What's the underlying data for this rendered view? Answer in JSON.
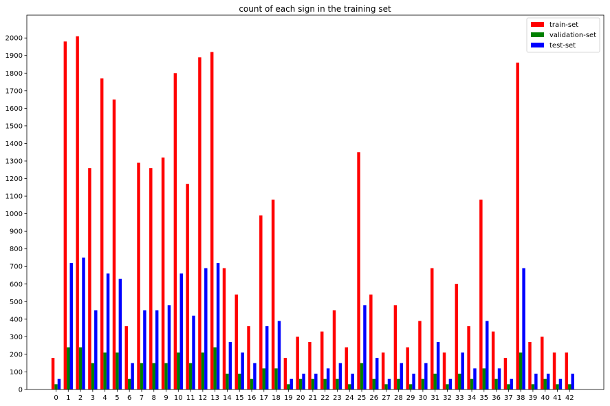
{
  "chart_data": {
    "type": "bar",
    "title": "count of each sign in the training set",
    "xlabel": "",
    "ylabel": "",
    "ylim": [
      0,
      2130
    ],
    "yticks": [
      0,
      100,
      200,
      300,
      400,
      500,
      600,
      700,
      800,
      900,
      1000,
      1100,
      1200,
      1300,
      1400,
      1500,
      1600,
      1700,
      1800,
      1900,
      2000
    ],
    "grid": false,
    "legend_position": "top-right",
    "categories": [
      "0",
      "1",
      "2",
      "3",
      "4",
      "5",
      "6",
      "7",
      "8",
      "9",
      "10",
      "11",
      "12",
      "13",
      "14",
      "15",
      "16",
      "17",
      "18",
      "19",
      "20",
      "21",
      "22",
      "23",
      "24",
      "25",
      "26",
      "27",
      "28",
      "29",
      "30",
      "31",
      "32",
      "33",
      "34",
      "35",
      "36",
      "37",
      "38",
      "39",
      "40",
      "41",
      "42"
    ],
    "series": [
      {
        "name": "train-set",
        "color": "#ff0000",
        "values": [
          180,
          1980,
          2010,
          1260,
          1770,
          1650,
          360,
          1290,
          1260,
          1320,
          1800,
          1170,
          1890,
          1920,
          690,
          540,
          360,
          990,
          1080,
          180,
          300,
          270,
          330,
          450,
          240,
          1350,
          540,
          210,
          480,
          240,
          390,
          690,
          210,
          600,
          360,
          1080,
          330,
          180,
          1860,
          270,
          300,
          210,
          210
        ]
      },
      {
        "name": "validation-set",
        "color": "#008000",
        "values": [
          30,
          240,
          240,
          150,
          210,
          210,
          60,
          150,
          150,
          150,
          210,
          150,
          210,
          240,
          90,
          90,
          60,
          120,
          120,
          30,
          60,
          60,
          60,
          60,
          30,
          150,
          60,
          30,
          60,
          30,
          60,
          90,
          30,
          90,
          60,
          120,
          60,
          30,
          210,
          30,
          60,
          30,
          30
        ]
      },
      {
        "name": "test-set",
        "color": "#0000ff",
        "values": [
          60,
          720,
          750,
          450,
          660,
          630,
          150,
          450,
          450,
          480,
          660,
          420,
          690,
          720,
          270,
          210,
          150,
          360,
          390,
          60,
          90,
          90,
          120,
          150,
          90,
          480,
          180,
          60,
          150,
          90,
          150,
          270,
          60,
          210,
          120,
          390,
          120,
          60,
          690,
          90,
          90,
          60,
          90
        ]
      }
    ]
  }
}
